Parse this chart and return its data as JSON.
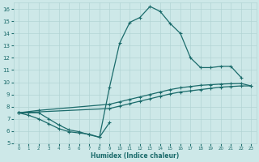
{
  "xlabel": "Humidex (Indice chaleur)",
  "xlim": [
    -0.5,
    23.5
  ],
  "ylim": [
    5,
    16.5
  ],
  "xticks": [
    0,
    1,
    2,
    3,
    4,
    5,
    6,
    7,
    8,
    9,
    10,
    11,
    12,
    13,
    14,
    15,
    16,
    17,
    18,
    19,
    20,
    21,
    22,
    23
  ],
  "yticks": [
    5,
    6,
    7,
    8,
    9,
    10,
    11,
    12,
    13,
    14,
    15,
    16
  ],
  "bg_color": "#cde8e8",
  "grid_color": "#b2d4d4",
  "line_color": "#1b6b6b",
  "line1_x": [
    0,
    1,
    2,
    3,
    4,
    5,
    6,
    7,
    8,
    9,
    10,
    11,
    12,
    13,
    14,
    15,
    16,
    17,
    18,
    19,
    20,
    21,
    22
  ],
  "line1_y": [
    7.5,
    7.5,
    7.5,
    7.0,
    6.5,
    6.1,
    5.95,
    5.7,
    5.5,
    9.6,
    13.2,
    14.9,
    15.3,
    16.2,
    15.8,
    14.8,
    14.0,
    12.0,
    11.2,
    11.2,
    11.3,
    11.3,
    10.4
  ],
  "line2_x": [
    0,
    2,
    9,
    10,
    11,
    12,
    13,
    14,
    15,
    16,
    17,
    18,
    19,
    20,
    21,
    22,
    23
  ],
  "line2_y": [
    7.5,
    7.7,
    8.2,
    8.4,
    8.6,
    8.8,
    9.0,
    9.2,
    9.4,
    9.55,
    9.65,
    9.75,
    9.8,
    9.85,
    9.88,
    9.9,
    9.7
  ],
  "line3_x": [
    0,
    9,
    10,
    11,
    12,
    13,
    14,
    15,
    16,
    17,
    18,
    19,
    20,
    21,
    22,
    23
  ],
  "line3_y": [
    7.5,
    7.85,
    8.05,
    8.25,
    8.45,
    8.65,
    8.85,
    9.05,
    9.2,
    9.3,
    9.4,
    9.5,
    9.6,
    9.65,
    9.7,
    9.7
  ],
  "line4_x": [
    0,
    1,
    2,
    3,
    4,
    5,
    6,
    7,
    8,
    9
  ],
  "line4_y": [
    7.5,
    7.3,
    7.0,
    6.6,
    6.2,
    5.95,
    5.85,
    5.75,
    5.5,
    6.7
  ],
  "lw": 0.9,
  "ms": 3.5
}
